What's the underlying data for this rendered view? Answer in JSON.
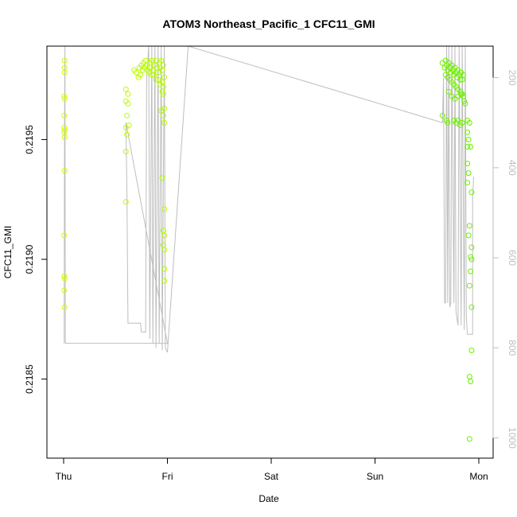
{
  "chart_data": {
    "type": "scatter",
    "title": "ATOM3 Northeast_Pacific_1 CFC11_GMI",
    "xlabel": "Date",
    "ylabel": "CFC11_GMI",
    "x_ticks": [
      "Thu",
      "Fri",
      "Sat",
      "Sun",
      "Mon"
    ],
    "x_range": [
      0,
      4.16
    ],
    "ylim": [
      0.21817,
      0.21989
    ],
    "y_ticks": [
      0.2185,
      0.219,
      0.2195
    ],
    "y_tick_labels": [
      "0.2185",
      "0.2190",
      "0.2195"
    ],
    "y2_ticks": [
      200,
      400,
      600,
      800,
      1000
    ],
    "y2_range": [
      1045,
      130
    ],
    "y2_color": "#bebebe",
    "line_color": "#bebebe",
    "grid": false,
    "legend": "none",
    "series": [
      {
        "role": "points",
        "marker": "open-circle",
        "color_start": "#ccff00",
        "color_end": "#66ee00",
        "points": [
          [
            0.01,
            0.21983
          ],
          [
            0.01,
            0.2198
          ],
          [
            0.01,
            0.21978
          ],
          [
            0.005,
            0.21968
          ],
          [
            0.01,
            0.21967
          ],
          [
            0.005,
            0.2196
          ],
          [
            0.005,
            0.21955
          ],
          [
            0.01,
            0.21954
          ],
          [
            0.005,
            0.21953
          ],
          [
            0.01,
            0.21951
          ],
          [
            0.01,
            0.21937
          ],
          [
            0.005,
            0.2191
          ],
          [
            0.005,
            0.21893
          ],
          [
            0.01,
            0.21892
          ],
          [
            0.005,
            0.21887
          ],
          [
            0.01,
            0.2188
          ],
          [
            0.6,
            0.21971
          ],
          [
            0.62,
            0.21969
          ],
          [
            0.6,
            0.21966
          ],
          [
            0.62,
            0.21965
          ],
          [
            0.61,
            0.2196
          ],
          [
            0.63,
            0.21956
          ],
          [
            0.6,
            0.21955
          ],
          [
            0.61,
            0.21952
          ],
          [
            0.6,
            0.21945
          ],
          [
            0.6,
            0.21924
          ],
          [
            0.68,
            0.21979
          ],
          [
            0.7,
            0.21978
          ],
          [
            0.72,
            0.21976
          ],
          [
            0.73,
            0.2198
          ],
          [
            0.75,
            0.21981
          ],
          [
            0.76,
            0.21979
          ],
          [
            0.77,
            0.21982
          ],
          [
            0.78,
            0.2198
          ],
          [
            0.79,
            0.21983
          ],
          [
            0.8,
            0.21981
          ],
          [
            0.81,
            0.21979
          ],
          [
            0.82,
            0.21978
          ],
          [
            0.83,
            0.21982
          ],
          [
            0.84,
            0.2198
          ],
          [
            0.85,
            0.21983
          ],
          [
            0.86,
            0.21979
          ],
          [
            0.87,
            0.21977
          ],
          [
            0.88,
            0.21981
          ],
          [
            0.89,
            0.21983
          ],
          [
            0.9,
            0.2198
          ],
          [
            0.91,
            0.21978
          ],
          [
            0.92,
            0.21982
          ],
          [
            0.93,
            0.2198
          ],
          [
            0.94,
            0.21983
          ],
          [
            0.95,
            0.21979
          ],
          [
            0.96,
            0.21981
          ],
          [
            0.97,
            0.21976
          ],
          [
            0.74,
            0.21977
          ],
          [
            0.85,
            0.21977
          ],
          [
            0.89,
            0.21975
          ],
          [
            0.91,
            0.21975
          ],
          [
            0.93,
            0.21973
          ],
          [
            0.95,
            0.21974
          ],
          [
            0.96,
            0.21972
          ],
          [
            0.95,
            0.2197
          ],
          [
            0.96,
            0.21969
          ],
          [
            0.94,
            0.21962
          ],
          [
            0.97,
            0.21963
          ],
          [
            0.96,
            0.2196
          ],
          [
            0.97,
            0.21957
          ],
          [
            0.95,
            0.21934
          ],
          [
            0.97,
            0.21921
          ],
          [
            0.96,
            0.21912
          ],
          [
            0.97,
            0.2191
          ],
          [
            0.96,
            0.21906
          ],
          [
            0.97,
            0.21904
          ],
          [
            0.97,
            0.21896
          ],
          [
            0.97,
            0.21891
          ],
          [
            3.65,
            0.21982
          ],
          [
            3.67,
            0.2198
          ],
          [
            3.68,
            0.21983
          ],
          [
            3.69,
            0.21981
          ],
          [
            3.7,
            0.21979
          ],
          [
            3.71,
            0.21982
          ],
          [
            3.72,
            0.2198
          ],
          [
            3.73,
            0.21978
          ],
          [
            3.74,
            0.21981
          ],
          [
            3.75,
            0.21979
          ],
          [
            3.76,
            0.21977
          ],
          [
            3.77,
            0.2198
          ],
          [
            3.78,
            0.21978
          ],
          [
            3.79,
            0.21976
          ],
          [
            3.8,
            0.21979
          ],
          [
            3.81,
            0.21977
          ],
          [
            3.82,
            0.21975
          ],
          [
            3.83,
            0.21978
          ],
          [
            3.84,
            0.21975
          ],
          [
            3.85,
            0.21977
          ],
          [
            3.68,
            0.21977
          ],
          [
            3.7,
            0.21976
          ],
          [
            3.72,
            0.21975
          ],
          [
            3.74,
            0.21974
          ],
          [
            3.76,
            0.21973
          ],
          [
            3.78,
            0.21972
          ],
          [
            3.8,
            0.21971
          ],
          [
            3.82,
            0.2197
          ],
          [
            3.84,
            0.21969
          ],
          [
            3.71,
            0.2197
          ],
          [
            3.74,
            0.21968
          ],
          [
            3.77,
            0.21967
          ],
          [
            3.8,
            0.21968
          ],
          [
            3.83,
            0.21969
          ],
          [
            3.85,
            0.21968
          ],
          [
            3.86,
            0.21966
          ],
          [
            3.65,
            0.2196
          ],
          [
            3.69,
            0.21958
          ],
          [
            3.7,
            0.21957
          ],
          [
            3.76,
            0.21958
          ],
          [
            3.78,
            0.21957
          ],
          [
            3.8,
            0.21958
          ],
          [
            3.82,
            0.21956
          ],
          [
            3.84,
            0.21957
          ],
          [
            3.87,
            0.21965
          ],
          [
            3.89,
            0.21958
          ],
          [
            3.91,
            0.21957
          ],
          [
            3.89,
            0.21953
          ],
          [
            3.9,
            0.2195
          ],
          [
            3.89,
            0.21947
          ],
          [
            3.92,
            0.21947
          ],
          [
            3.89,
            0.2194
          ],
          [
            3.9,
            0.21936
          ],
          [
            3.93,
            0.21928
          ],
          [
            3.89,
            0.21932
          ],
          [
            3.91,
            0.21914
          ],
          [
            3.9,
            0.2191
          ],
          [
            3.93,
            0.21905
          ],
          [
            3.92,
            0.21901
          ],
          [
            3.93,
            0.219
          ],
          [
            3.92,
            0.21895
          ],
          [
            3.91,
            0.21889
          ],
          [
            3.93,
            0.2188
          ],
          [
            3.93,
            0.21862
          ],
          [
            3.91,
            0.21851
          ],
          [
            3.92,
            0.21849
          ],
          [
            3.91,
            0.21825
          ]
        ]
      },
      {
        "role": "line",
        "axis": "right",
        "color": "#bebebe",
        "points": [
          [
            0.005,
            790
          ],
          [
            0.008,
            400
          ],
          [
            0.011,
            180
          ],
          [
            0.013,
            130
          ],
          [
            0.016,
            790
          ],
          [
            1.0,
            790
          ],
          [
            0.6,
            300
          ],
          [
            0.61,
            460
          ],
          [
            0.62,
            745
          ],
          [
            0.74,
            745
          ],
          [
            0.75,
            765
          ],
          [
            0.79,
            765
          ],
          [
            0.8,
            200
          ],
          [
            0.82,
            130
          ],
          [
            0.83,
            780
          ],
          [
            0.85,
            130
          ],
          [
            0.86,
            790
          ],
          [
            0.88,
            130
          ],
          [
            0.89,
            800
          ],
          [
            0.91,
            130
          ],
          [
            0.92,
            790
          ],
          [
            0.94,
            130
          ],
          [
            0.95,
            805
          ],
          [
            0.97,
            130
          ],
          [
            0.98,
            800
          ],
          [
            1.0,
            810
          ],
          [
            1.2,
            130
          ],
          [
            3.65,
            300
          ],
          [
            3.66,
            200
          ],
          [
            3.67,
            700
          ],
          [
            3.68,
            700
          ],
          [
            3.69,
            130
          ],
          [
            3.7,
            700
          ],
          [
            3.71,
            130
          ],
          [
            3.72,
            710
          ],
          [
            3.73,
            700
          ],
          [
            3.74,
            130
          ],
          [
            3.76,
            700
          ],
          [
            3.77,
            130
          ],
          [
            3.78,
            720
          ],
          [
            3.8,
            750
          ],
          [
            3.81,
            130
          ],
          [
            3.83,
            750
          ],
          [
            3.84,
            130
          ],
          [
            3.86,
            760
          ],
          [
            3.87,
            130
          ],
          [
            3.88,
            730
          ],
          [
            3.89,
            770
          ],
          [
            3.94,
            770
          ],
          [
            3.94,
            470
          ],
          [
            3.95,
            420
          ]
        ]
      }
    ]
  }
}
